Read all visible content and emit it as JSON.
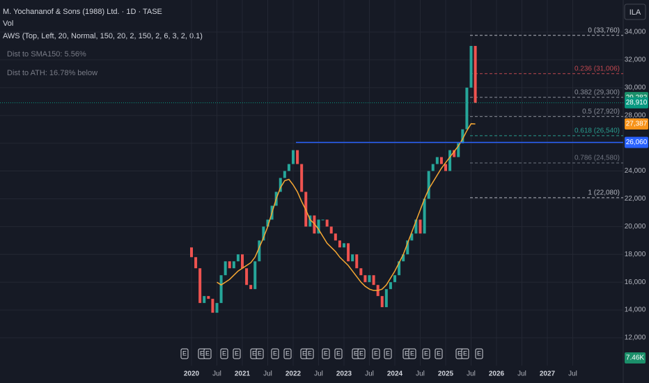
{
  "header": {
    "title": "M. Yochananof & Sons (1988) Ltd. · 1D · TASE",
    "volume_label": "Vol",
    "indicator": "AWS (Top, Left, 20, Normal, 150, 20, 2, 150, 2, 6, 3, 2, 0.1)",
    "dist_sma": "Dist to SMA150: 5.56%",
    "dist_ath": "Dist to ATH: 16.78% below",
    "currency": "ILA"
  },
  "chart_data": {
    "type": "candlestick",
    "xticks": [
      "2020",
      "Jul",
      "2021",
      "Jul",
      "2022",
      "Jul",
      "2023",
      "Jul",
      "2024",
      "Jul",
      "2025",
      "Jul",
      "2026",
      "Jul",
      "2027",
      "Jul"
    ],
    "ylim": [
      11000,
      35000
    ],
    "yticks": [
      {
        "value": 12000,
        "label": "12,000"
      },
      {
        "value": 14000,
        "label": "14,000"
      },
      {
        "value": 16000,
        "label": "16,000"
      },
      {
        "value": 18000,
        "label": "18,000"
      },
      {
        "value": 20000,
        "label": "20,000"
      },
      {
        "value": 22000,
        "label": "22,000"
      },
      {
        "value": 24000,
        "label": "24,000"
      },
      {
        "value": 26000,
        "label": "26,000"
      },
      {
        "value": 28000,
        "label": "28,000"
      },
      {
        "value": 30000,
        "label": "30,000"
      },
      {
        "value": 32000,
        "label": "32,000"
      },
      {
        "value": 34000,
        "label": "34,000"
      }
    ],
    "series": [
      {
        "name": "Price",
        "up_color": "#26a69a",
        "down_color": "#ef5350",
        "values": [
          18500,
          17800,
          17000,
          14500,
          15000,
          14800,
          13800,
          14500,
          16500,
          17500,
          17000,
          17500,
          18000,
          17000,
          15800,
          15500,
          17500,
          19000,
          20000,
          20500,
          21500,
          22500,
          23500,
          24000,
          24500,
          25500,
          24500,
          22500,
          20000,
          20800,
          19500,
          20500,
          20500,
          20000,
          19500,
          19000,
          18500,
          18800,
          17500,
          18000,
          17000,
          16500,
          16000,
          16500,
          15800,
          15000,
          14200,
          15500,
          16000,
          16500,
          17500,
          18000,
          19000,
          19500,
          20500,
          19500,
          22000,
          24000,
          24500,
          25000,
          24500,
          24000,
          25500,
          25000,
          26000,
          27000,
          30000,
          33000,
          28900
        ]
      },
      {
        "name": "SMA150",
        "color": "#f7a833",
        "values": [
          null,
          null,
          null,
          null,
          null,
          null,
          null,
          16000,
          15800,
          16000,
          16200,
          16500,
          16800,
          17000,
          17200,
          17400,
          17800,
          18500,
          19200,
          20000,
          21000,
          22000,
          22800,
          23300,
          23400,
          23000,
          22500,
          21800,
          21200,
          20500,
          20200,
          19800,
          19300,
          18800,
          18500,
          18200,
          17800,
          17500,
          17200,
          16800,
          16400,
          16000,
          15700,
          15500,
          15400,
          15400,
          15500,
          15800,
          16300,
          16800,
          17400,
          18000,
          18800,
          19600,
          20400,
          21200,
          22000,
          22700,
          23200,
          23700,
          24200,
          24600,
          25000,
          25400,
          25800,
          26300,
          26900,
          27400,
          27387
        ]
      }
    ],
    "fib_levels": [
      {
        "value": 33760,
        "label": "0 (33,760)"
      },
      {
        "value": 31006,
        "label": "0.236 (31,006)"
      },
      {
        "value": 29300,
        "label": "0.382 (29,300)"
      },
      {
        "value": 27920,
        "label": "0.5 (27,920)"
      },
      {
        "value": 26540,
        "label": "0.618 (26,540)"
      },
      {
        "value": 24580,
        "label": "0.786 (24,580)"
      },
      {
        "value": 22080,
        "label": "1 (22,080)"
      }
    ],
    "fib_colors": [
      "#b2b5be",
      "#c0474f",
      "#8a8e99",
      "#8a8e99",
      "#2a9d8f",
      "#6f7480",
      "#b2b5be"
    ],
    "price_badges": [
      {
        "value": 29282,
        "label": "29,282",
        "color": "#1b8f6a"
      },
      {
        "value": 28910,
        "label": "28,910",
        "color": "#089981"
      },
      {
        "value": 27387,
        "label": "27,387",
        "color": "#f7931a"
      },
      {
        "value": 26060,
        "label": "26,060",
        "color": "#2962ff"
      }
    ],
    "volume_badge": "7.46K",
    "earnings_marker": "E"
  }
}
